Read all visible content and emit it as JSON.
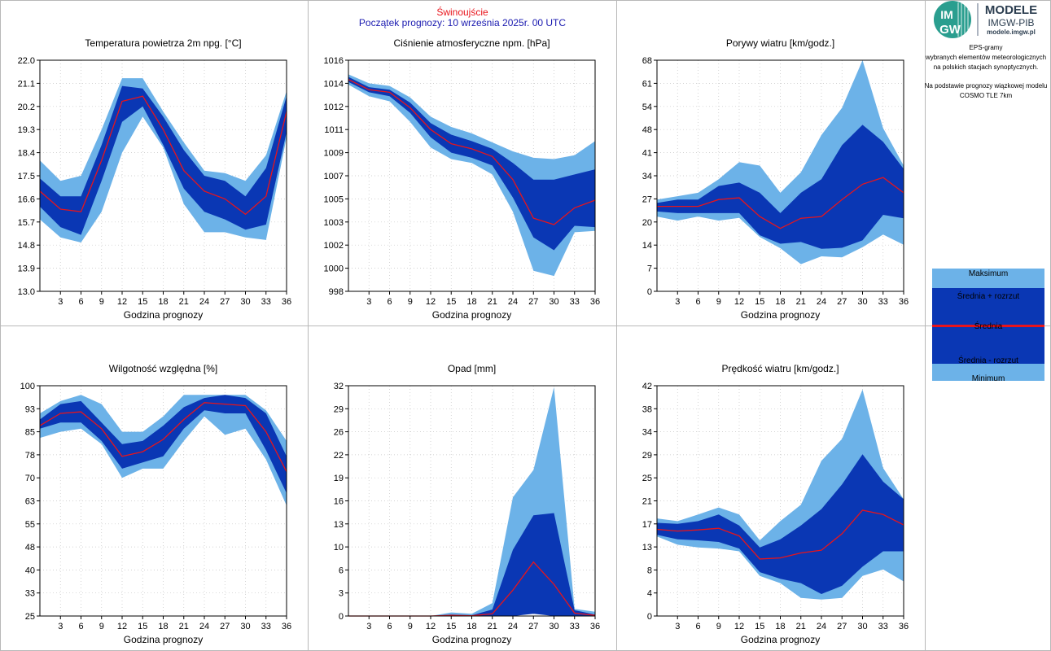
{
  "header": {
    "station": "Świnoujście",
    "forecast_start": "Początek prognozy: 10 września 2025r. 00 UTC"
  },
  "logo": {
    "mark_top": "IM",
    "mark_bottom": "GW",
    "line1": "MODELE",
    "line2": "IMGW-PIB",
    "line3": "modele.imgw.pl"
  },
  "side_info": {
    "lines": [
      "EPS-gramy",
      "wybranych elementów meteorologicznych",
      "na polskich stacjach  synoptycznych.",
      "",
      "Na podstawie prognozy wiązkowej modelu",
      "COSMO TLE 7km"
    ]
  },
  "legend": {
    "max": "Maksimum",
    "mean_plus": "Średnia + rozrzut",
    "mean": "Średnia",
    "mean_minus": "Średnia - rozrzut",
    "min": "Minimum"
  },
  "colors": {
    "outer_band": "#6cb2e8",
    "inner_band": "#0a37b4",
    "mean_line": "#e8141b",
    "station_text": "#e8141b",
    "start_text": "#1a1ab0"
  },
  "chart_data": [
    {
      "type": "area",
      "title": "Temperatura powietrza 2m npg. [°C]",
      "xlabel": "Godzina prognozy",
      "x": [
        0,
        3,
        6,
        9,
        12,
        15,
        18,
        21,
        24,
        27,
        30,
        33,
        36
      ],
      "xticks": [
        "3",
        "6",
        "9",
        "12",
        "15",
        "18",
        "21",
        "24",
        "27",
        "30",
        "33",
        "36"
      ],
      "ylim": [
        13.0,
        22.0
      ],
      "yticks": [
        "13.0",
        "13.9",
        "14.8",
        "15.7",
        "16.6",
        "17.5",
        "18.4",
        "19.3",
        "20.2",
        "21.1",
        "22.0"
      ],
      "series": [
        {
          "name": "Maksimum",
          "values": [
            18.1,
            17.3,
            17.5,
            19.3,
            21.3,
            21.3,
            20.0,
            18.8,
            17.7,
            17.6,
            17.3,
            18.3,
            20.8
          ]
        },
        {
          "name": "Średnia + rozrzut",
          "values": [
            17.4,
            16.7,
            16.7,
            18.7,
            21.0,
            20.9,
            19.8,
            18.5,
            17.5,
            17.3,
            16.7,
            17.8,
            20.6
          ]
        },
        {
          "name": "Średnia",
          "values": [
            16.9,
            16.2,
            16.1,
            18.1,
            20.4,
            20.6,
            19.3,
            17.7,
            16.9,
            16.6,
            16.0,
            16.7,
            20.0
          ]
        },
        {
          "name": "Średnia - rozrzut",
          "values": [
            16.3,
            15.5,
            15.2,
            17.3,
            19.6,
            20.2,
            18.7,
            17.0,
            16.1,
            15.8,
            15.4,
            15.6,
            19.2
          ]
        },
        {
          "name": "Minimum",
          "values": [
            15.8,
            15.1,
            14.9,
            16.1,
            18.4,
            19.8,
            18.6,
            16.4,
            15.3,
            15.3,
            15.1,
            15.0,
            19.0
          ]
        }
      ]
    },
    {
      "type": "area",
      "title": "Ciśnienie atmosferyczne npm. [hPa]",
      "xlabel": "Godzina prognozy",
      "x": [
        0,
        3,
        6,
        9,
        12,
        15,
        18,
        21,
        24,
        27,
        30,
        33,
        36
      ],
      "xticks": [
        "3",
        "6",
        "9",
        "12",
        "15",
        "18",
        "21",
        "24",
        "27",
        "30",
        "33",
        "36"
      ],
      "ylim": [
        998,
        1016
      ],
      "yticks": [
        "998",
        "1000",
        "1002",
        "1003",
        "1005",
        "1007",
        "1009",
        "1011",
        "1012",
        "1014",
        "1016"
      ],
      "series": [
        {
          "name": "Maksimum",
          "values": [
            1014.9,
            1014.2,
            1014.0,
            1013.1,
            1011.6,
            1010.8,
            1010.3,
            1009.6,
            1008.9,
            1008.4,
            1008.3,
            1008.6,
            1009.7
          ]
        },
        {
          "name": "Średnia + rozrzut",
          "values": [
            1014.7,
            1013.9,
            1013.7,
            1012.7,
            1011.1,
            1010.2,
            1009.7,
            1009.1,
            1008.0,
            1006.7,
            1006.7,
            1007.1,
            1007.5
          ]
        },
        {
          "name": "Średnia",
          "values": [
            1014.5,
            1013.7,
            1013.5,
            1012.3,
            1010.6,
            1009.5,
            1009.1,
            1008.5,
            1006.7,
            1003.7,
            1003.2,
            1004.5,
            1005.1
          ]
        },
        {
          "name": "Średnia - rozrzut",
          "values": [
            1014.3,
            1013.5,
            1013.2,
            1011.9,
            1010.0,
            1008.8,
            1008.4,
            1007.8,
            1005.3,
            1002.2,
            1001.2,
            1003.1,
            1003.0
          ]
        },
        {
          "name": "Minimum",
          "values": [
            1014.1,
            1013.2,
            1012.8,
            1011.2,
            1009.2,
            1008.3,
            1008.0,
            1007.1,
            1004.2,
            999.6,
            999.2,
            1002.6,
            1002.7
          ]
        }
      ]
    },
    {
      "type": "area",
      "title": "Porywy wiatru [km/godz.]",
      "xlabel": "Godzina prognozy",
      "x": [
        0,
        3,
        6,
        9,
        12,
        15,
        18,
        21,
        24,
        27,
        30,
        33,
        36
      ],
      "xticks": [
        "3",
        "6",
        "9",
        "12",
        "15",
        "18",
        "21",
        "24",
        "27",
        "30",
        "33",
        "36"
      ],
      "ylim": [
        0,
        68
      ],
      "yticks": [
        "0",
        "7",
        "14",
        "20",
        "27",
        "34",
        "41",
        "48",
        "54",
        "61",
        "68"
      ],
      "series": [
        {
          "name": "Maksimum",
          "values": [
            27,
            28,
            29,
            33,
            38,
            37,
            29,
            35,
            46,
            54,
            68,
            48,
            37
          ]
        },
        {
          "name": "Średnia + rozrzut",
          "values": [
            26,
            27,
            27,
            31,
            32,
            29,
            23,
            29,
            33,
            43,
            49,
            44,
            36
          ]
        },
        {
          "name": "Średnia",
          "values": [
            25,
            25,
            25,
            27,
            27.5,
            22,
            18.5,
            21.5,
            22,
            27,
            31.5,
            33.5,
            29
          ]
        },
        {
          "name": "Średnia - rozrzut",
          "values": [
            23.5,
            23,
            23,
            23,
            23,
            16.5,
            14,
            14.5,
            12.5,
            12.8,
            15,
            22.5,
            21.5
          ]
        },
        {
          "name": "Minimum",
          "values": [
            22,
            20.8,
            22,
            20.8,
            21.6,
            16,
            12.7,
            8,
            10.3,
            10,
            13,
            16.7,
            13.7
          ]
        }
      ]
    },
    {
      "type": "area",
      "title": "Wilgotność względna [%]",
      "xlabel": "Godzina prognozy",
      "x": [
        0,
        3,
        6,
        9,
        12,
        15,
        18,
        21,
        24,
        27,
        30,
        33,
        36
      ],
      "xticks": [
        "3",
        "6",
        "9",
        "12",
        "15",
        "18",
        "21",
        "24",
        "27",
        "30",
        "33",
        "36"
      ],
      "ylim": [
        25,
        100
      ],
      "yticks": [
        "25",
        "33",
        "40",
        "48",
        "55",
        "63",
        "70",
        "78",
        "85",
        "93",
        "100"
      ],
      "series": [
        {
          "name": "Maksimum",
          "values": [
            91,
            95,
            97,
            94,
            85,
            85,
            90,
            97,
            97,
            97,
            97,
            92,
            82
          ]
        },
        {
          "name": "Średnia + rozrzut",
          "values": [
            89,
            94,
            95,
            88,
            81,
            82,
            87,
            93,
            96,
            97,
            96,
            91,
            77
          ]
        },
        {
          "name": "Średnia",
          "values": [
            87,
            91,
            91.5,
            86,
            77,
            78.5,
            82.5,
            89,
            94.5,
            94,
            93.5,
            85,
            72
          ]
        },
        {
          "name": "Średnia - rozrzut",
          "values": [
            86,
            88,
            88,
            82,
            73,
            75,
            77,
            86,
            92,
            91,
            91,
            79,
            65
          ]
        },
        {
          "name": "Minimum",
          "values": [
            83,
            85,
            86,
            81,
            70,
            73,
            73,
            82,
            90,
            84,
            86,
            76,
            61
          ]
        }
      ]
    },
    {
      "type": "area",
      "title": "Opad [mm]",
      "xlabel": "Godzina prognozy",
      "x": [
        0,
        3,
        6,
        9,
        12,
        15,
        18,
        21,
        24,
        27,
        30,
        33,
        36
      ],
      "xticks": [
        "3",
        "6",
        "9",
        "12",
        "15",
        "18",
        "21",
        "24",
        "27",
        "30",
        "33",
        "36"
      ],
      "ylim": [
        0,
        32
      ],
      "yticks": [
        "0",
        "3",
        "6",
        "10",
        "13",
        "16",
        "19",
        "22",
        "26",
        "29",
        "32"
      ],
      "series": [
        {
          "name": "Maksimum",
          "values": [
            0,
            0,
            0,
            0,
            0,
            0.5,
            0.3,
            1.8,
            16.5,
            20.3,
            31.8,
            1.0,
            0.6
          ]
        },
        {
          "name": "Średnia + rozrzut",
          "values": [
            0,
            0,
            0,
            0,
            0,
            0.2,
            0.1,
            0.9,
            9.2,
            14,
            14.3,
            0.8,
            0.2
          ]
        },
        {
          "name": "Średnia",
          "values": [
            0,
            0,
            0,
            0,
            0,
            0.1,
            0.05,
            0.3,
            3.6,
            7.5,
            4.4,
            0.4,
            0.1
          ]
        },
        {
          "name": "Średnia - rozrzut",
          "values": [
            0,
            0,
            0,
            0,
            0,
            0,
            0,
            0,
            0,
            0.3,
            0,
            0,
            0
          ]
        },
        {
          "name": "Minimum",
          "values": [
            0,
            0,
            0,
            0,
            0,
            0,
            0,
            0,
            0,
            1.0,
            0,
            0,
            0
          ]
        }
      ]
    },
    {
      "type": "area",
      "title": "Prędkość wiatru [km/godz.]",
      "xlabel": "Godzina prognozy",
      "x": [
        0,
        3,
        6,
        9,
        12,
        15,
        18,
        21,
        24,
        27,
        30,
        33,
        36
      ],
      "xticks": [
        "3",
        "6",
        "9",
        "12",
        "15",
        "18",
        "21",
        "24",
        "27",
        "30",
        "33",
        "36"
      ],
      "ylim": [
        0,
        42
      ],
      "yticks": [
        "0",
        "4",
        "8",
        "13",
        "17",
        "21",
        "25",
        "29",
        "34",
        "38",
        "42"
      ],
      "series": [
        {
          "name": "Maksimum",
          "values": [
            17.8,
            17.3,
            18.5,
            19.8,
            18.5,
            13.8,
            17.3,
            20.3,
            28.3,
            32.3,
            41.3,
            27,
            21.3
          ]
        },
        {
          "name": "Średnia + rozrzut",
          "values": [
            17,
            16.8,
            17.3,
            18.5,
            16.5,
            12.5,
            14,
            16.5,
            19.5,
            24,
            29.5,
            24.5,
            21.3
          ]
        },
        {
          "name": "Średnia",
          "values": [
            15.8,
            15.5,
            15.7,
            16,
            14.6,
            10.4,
            10.6,
            11.5,
            12,
            15,
            19.3,
            18.5,
            16.6
          ]
        },
        {
          "name": "Średnia - rozrzut",
          "values": [
            14.8,
            14,
            13.8,
            13.5,
            12.3,
            8,
            6.8,
            6,
            4,
            5.5,
            9,
            11.8,
            11.8
          ]
        },
        {
          "name": "Minimum",
          "values": [
            14.5,
            13,
            12.5,
            12.3,
            11.8,
            7.3,
            6,
            3.3,
            3,
            3.3,
            7.3,
            8.5,
            6.3
          ]
        }
      ]
    }
  ]
}
